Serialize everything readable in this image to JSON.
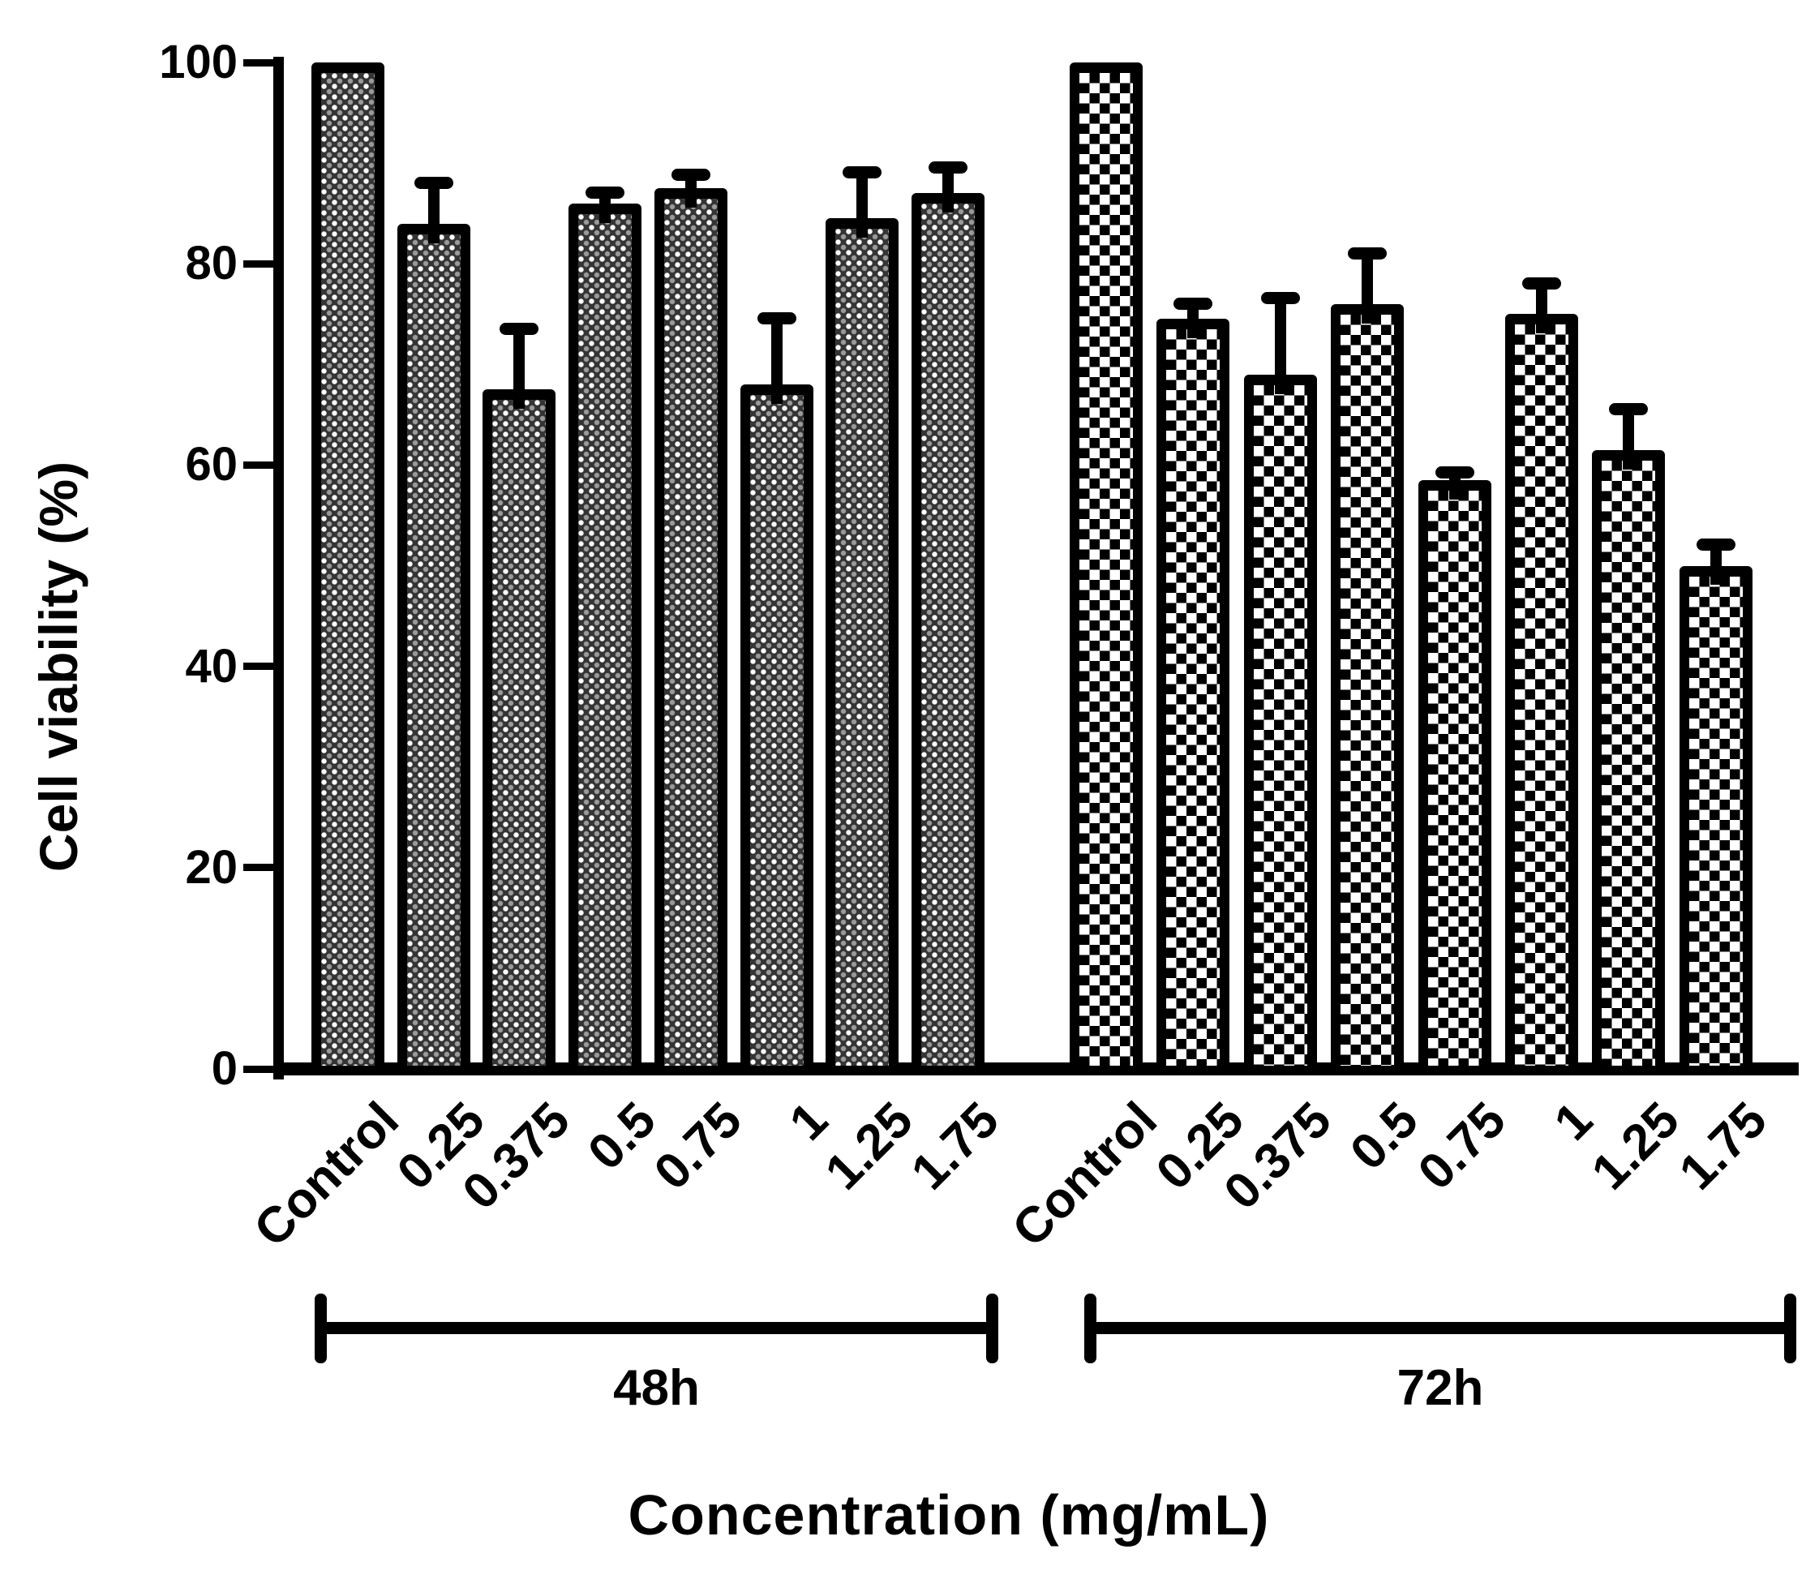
{
  "chart_data": {
    "type": "bar",
    "title": "",
    "xlabel": "Concentration (mg/mL)",
    "ylabel": "Cell viability (%)",
    "ylim": [
      0,
      100
    ],
    "yticks": [
      0,
      20,
      40,
      60,
      80,
      100
    ],
    "grid": false,
    "legend_position": "none",
    "categories": [
      "Control",
      "0.25",
      "0.375",
      "0.5",
      "0.75",
      "1",
      "1.25",
      "1.75"
    ],
    "groups": [
      {
        "label": "48h",
        "fill": "fine-dot-gray-pattern",
        "values": [
          100,
          84,
          67.5,
          86,
          87.5,
          68,
          84.5,
          87
        ],
        "errors_plus": [
          0,
          4.5,
          6.5,
          1.5,
          1.8,
          7,
          5,
          3
        ]
      },
      {
        "label": "72h",
        "fill": "black-white-checkerboard-pattern",
        "values": [
          100,
          74.5,
          69,
          76,
          58.5,
          75,
          61.5,
          50
        ],
        "errors_plus": [
          0,
          2,
          8,
          5.5,
          1.2,
          3.5,
          4.5,
          2.5
        ]
      }
    ],
    "colors": {
      "ink": "#000000",
      "background": "#ffffff"
    }
  }
}
